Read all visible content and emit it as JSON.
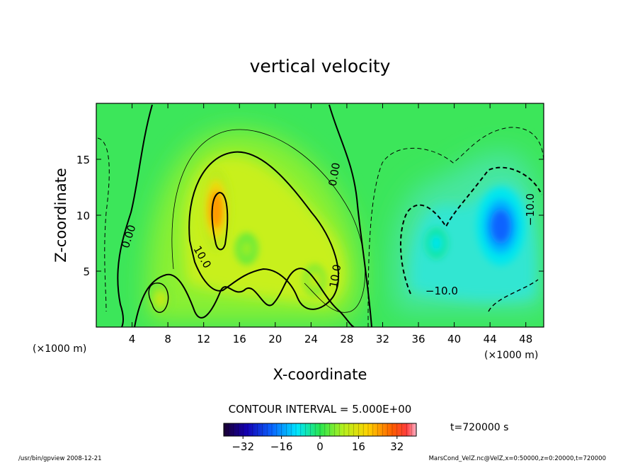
{
  "chart_data": {
    "type": "heatmap",
    "title": "vertical velocity",
    "xlabel": "X-coordinate",
    "ylabel": "Z-coordinate",
    "x_unit_left": "(×1000 m)",
    "x_unit_right": "(×1000 m)",
    "xlim": [
      0,
      50
    ],
    "ylim": [
      0,
      20
    ],
    "x_ticks": [
      4,
      8,
      12,
      16,
      20,
      24,
      28,
      32,
      36,
      40,
      44,
      48
    ],
    "y_ticks": [
      5,
      10,
      15
    ],
    "contour_interval_text": "CONTOUR INTERVAL = 5.000E+00",
    "time_text": "t=720000 s",
    "colorbar": {
      "range": [
        -40,
        40
      ],
      "ticks": [
        -32,
        -16,
        0,
        16,
        32
      ],
      "tick_labels": [
        "−32",
        "−16",
        "0",
        "16",
        "32"
      ]
    },
    "contour_labels": [
      {
        "text": "0.00",
        "x": 4.0,
        "y": 8.0,
        "rotate": -72
      },
      {
        "text": "10.0",
        "x": 11.5,
        "y": 6.1,
        "rotate": 60
      },
      {
        "text": "0.00",
        "x": 27.0,
        "y": 13.6,
        "rotate": -80
      },
      {
        "text": "10.0",
        "x": 27.1,
        "y": 4.5,
        "rotate": -80
      },
      {
        "text": "−10.0",
        "x": 38.6,
        "y": 2.9,
        "rotate": 0
      },
      {
        "text": "−10.0",
        "x": 48.9,
        "y": 10.5,
        "rotate": -90
      }
    ],
    "features": [
      {
        "kind": "updraft",
        "x": 13.4,
        "y": 10.5,
        "peak": 25
      },
      {
        "kind": "updraft",
        "x": 7.2,
        "y": 2.5,
        "peak": 12
      },
      {
        "kind": "updraft",
        "x": 24.4,
        "y": 4.2,
        "peak": 12
      },
      {
        "kind": "updraft",
        "x": 16.8,
        "y": 7.0,
        "peak": 8
      },
      {
        "kind": "downdraft",
        "x": 45.2,
        "y": 9.0,
        "peak": -20
      },
      {
        "kind": "downdraft",
        "x": 38.0,
        "y": 7.5,
        "peak": -9
      }
    ]
  },
  "footer": {
    "left": "/usr/bin/gpview   2008-12-21",
    "right": "MarsCond_VelZ.nc@VelZ,x=0:50000,z=0:20000,t=720000"
  }
}
